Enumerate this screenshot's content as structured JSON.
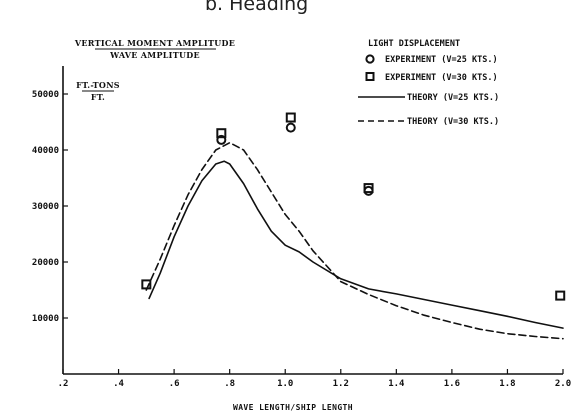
{
  "caption": "b.  Heading",
  "chart_data": {
    "type": "line",
    "title_line1": "VERTICAL MOMENT AMPLITUDE",
    "title_line2": "WAVE AMPLITUDE",
    "units_line1": "FT.-TONS",
    "units_line2": "FT.",
    "xlabel": "WAVE LENGTH/SHIP LENGTH",
    "xlim": [
      0.2,
      2.0
    ],
    "ylim": [
      0,
      55000
    ],
    "x_ticks": [
      0.2,
      0.4,
      0.6,
      0.8,
      1.0,
      1.2,
      1.4,
      1.6,
      1.8,
      2.0
    ],
    "x_tick_labels": [
      ".2",
      ".4",
      ".6",
      ".8",
      "1.0",
      "1.2",
      "1.4",
      "1.6",
      "1.8",
      "2.0"
    ],
    "y_ticks": [
      10000,
      20000,
      30000,
      40000,
      50000
    ],
    "y_tick_labels": [
      "10000",
      "20000",
      "30000",
      "40000",
      "50000"
    ],
    "legend_title": "LIGHT DISPLACEMENT",
    "legend_position": "top-right",
    "series": [
      {
        "name": "EXPERIMENT (V=25 KTS.)",
        "kind": "scatter",
        "marker": "circle",
        "x": [
          0.77,
          1.02,
          1.3
        ],
        "y": [
          41800,
          44000,
          32700
        ]
      },
      {
        "name": "EXPERIMENT (V=30 KTS.)",
        "kind": "scatter",
        "marker": "square",
        "x": [
          0.5,
          0.77,
          1.02,
          1.3,
          1.99
        ],
        "y": [
          16000,
          43000,
          45800,
          33200,
          14000
        ]
      },
      {
        "name": "THEORY (V=25 KTS.)",
        "kind": "line",
        "dash": "solid",
        "x": [
          0.51,
          0.55,
          0.6,
          0.65,
          0.7,
          0.75,
          0.78,
          0.8,
          0.85,
          0.9,
          0.95,
          1.0,
          1.05,
          1.1,
          1.2,
          1.3,
          1.4,
          1.5,
          1.6,
          1.7,
          1.8,
          1.9,
          2.0
        ],
        "y": [
          13500,
          18000,
          24500,
          30000,
          34500,
          37500,
          38000,
          37500,
          34000,
          29500,
          25500,
          23000,
          21800,
          20000,
          17000,
          15200,
          14300,
          13300,
          12300,
          11300,
          10300,
          9200,
          8200
        ]
      },
      {
        "name": "THEORY (V=30 KTS.)",
        "kind": "line",
        "dash": "dashed",
        "x": [
          0.5,
          0.55,
          0.6,
          0.65,
          0.7,
          0.75,
          0.8,
          0.85,
          0.9,
          0.95,
          1.0,
          1.05,
          1.1,
          1.2,
          1.3,
          1.4,
          1.5,
          1.6,
          1.7,
          1.8,
          1.9,
          2.0
        ],
        "y": [
          15000,
          20500,
          26500,
          32000,
          36500,
          40000,
          41300,
          40000,
          36500,
          32500,
          28500,
          25500,
          22000,
          16500,
          14200,
          12200,
          10500,
          9200,
          8000,
          7200,
          6700,
          6300
        ]
      }
    ]
  }
}
